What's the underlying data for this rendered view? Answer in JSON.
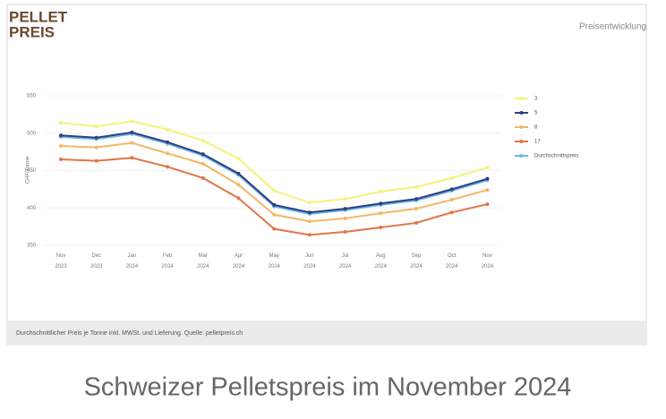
{
  "header": {
    "logo": [
      "PELLET",
      "PREIS"
    ],
    "heading": "Preisentwicklung"
  },
  "chart_data": {
    "type": "line",
    "y_label": "CHF/Tonne",
    "categories": [
      "Nov 2023",
      "Dec 2023",
      "Jan 2024",
      "Feb 2024",
      "Mar 2024",
      "Apr 2024",
      "May 2024",
      "Jun 2024",
      "Jul 2024",
      "Aug 2024",
      "Sep 2024",
      "Oct 2024",
      "Nov 2024"
    ],
    "ylim": [
      350,
      550
    ],
    "yticks": [
      350,
      400,
      450,
      500,
      550
    ],
    "grid": true,
    "series": [
      {
        "name": "3",
        "color": "#f3f37a",
        "values": [
          514,
          509,
          516,
          505,
          490,
          466,
          423,
          407,
          412,
          422,
          428,
          440,
          454
        ]
      },
      {
        "name": "5",
        "color": "#2f3f7f",
        "values": [
          497,
          494,
          501,
          488,
          472,
          446,
          404,
          394,
          399,
          406,
          412,
          425,
          439
        ]
      },
      {
        "name": "8",
        "color": "#f2b766",
        "values": [
          483,
          481,
          487,
          473,
          459,
          431,
          391,
          382,
          386,
          393,
          399,
          411,
          424
        ]
      },
      {
        "name": "17",
        "color": "#e07548",
        "values": [
          465,
          463,
          467,
          455,
          440,
          413,
          372,
          364,
          368,
          374,
          380,
          394,
          405
        ]
      },
      {
        "name": "Durchschnittspreis",
        "color": "#6bb6e3",
        "values": [
          495,
          492,
          499,
          486,
          470,
          444,
          402,
          392,
          397,
          404,
          410,
          423,
          437
        ]
      }
    ]
  },
  "footer": "Durchschnittlicher Preis je Tonne inkl. MWSt. und Lieferung. Quelle: pelletpreis.ch",
  "caption": "Schweizer Pelletspreis im November 2024"
}
